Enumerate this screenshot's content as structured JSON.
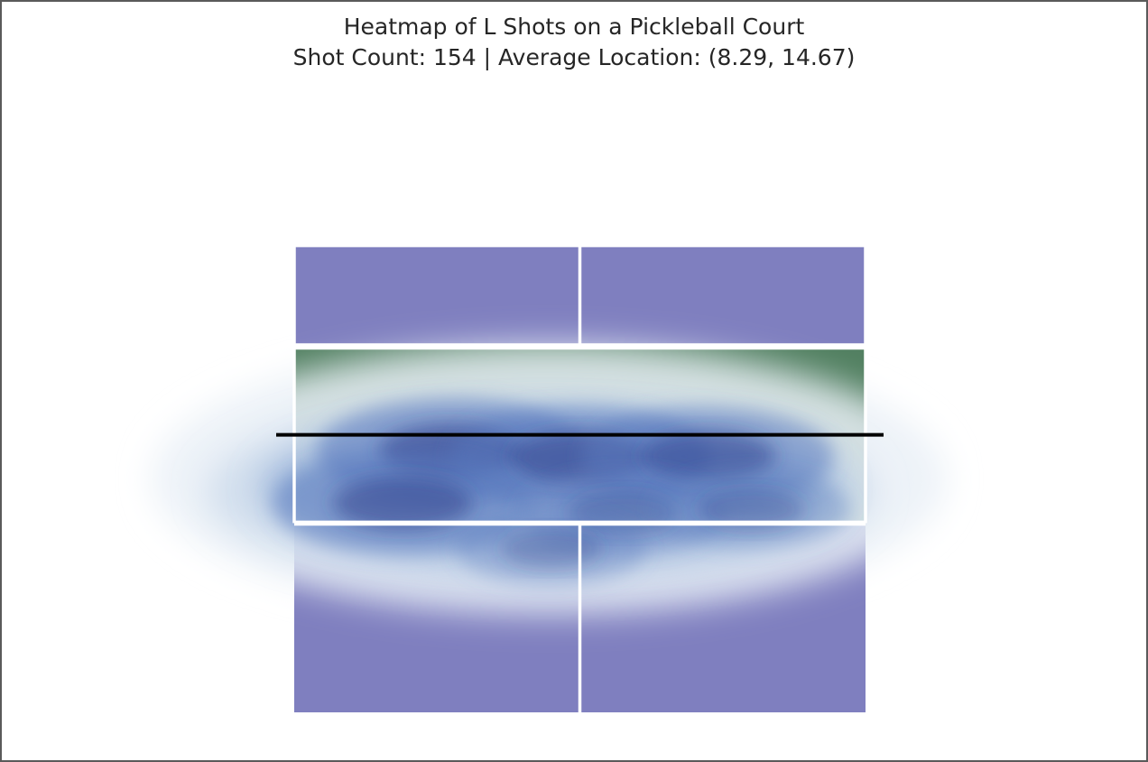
{
  "chart_data": {
    "type": "heatmap",
    "title_lines": [
      "Heatmap of L Shots on a Pickleball Court",
      "Shot Count: 154 | Average Location: (8.29, 14.67)"
    ],
    "shot_count": 154,
    "average_location": [
      8.29,
      14.67
    ],
    "court": {
      "width_ft": 20,
      "length_ft": 44,
      "kitchen_depth_ft": 7
    },
    "density_hotspots": [
      {
        "x": 5.5,
        "y": 20.7,
        "level": 0.95
      },
      {
        "x": 10.0,
        "y": 20.2,
        "level": 0.9
      },
      {
        "x": 14.5,
        "y": 20.3,
        "level": 0.85
      },
      {
        "x": 3.8,
        "y": 16.6,
        "level": 0.9
      },
      {
        "x": 11.5,
        "y": 15.8,
        "level": 0.6
      },
      {
        "x": 16.0,
        "y": 16.1,
        "level": 0.55
      },
      {
        "x": 9.0,
        "y": 13.0,
        "level": 0.5
      }
    ],
    "axes_visible": false,
    "grid": false,
    "legend": "none",
    "colors": {
      "service_box": "#7f7fbf",
      "kitchen": "#528061",
      "court_lines": "#ffffff",
      "net": "#000000",
      "density_low": "#eaf0f7",
      "density_high": "#2c3f8c"
    }
  }
}
